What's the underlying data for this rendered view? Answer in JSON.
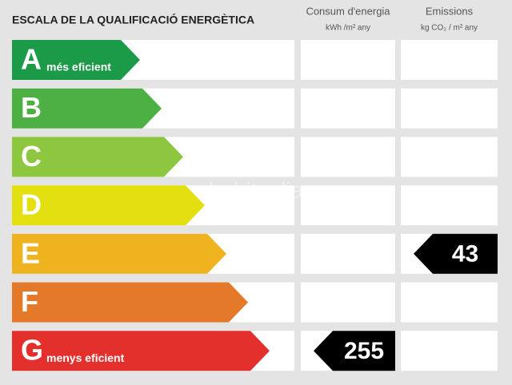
{
  "header": {
    "title": "ESCALA DE LA QUALIFICACIÓ ENERGÈTICA"
  },
  "columns": [
    {
      "title": "Consum d'energia",
      "unit": "kWh /m² any",
      "rating": "G",
      "value": 255
    },
    {
      "title": "Emissions",
      "unit": "kg CO₂ / m² any",
      "rating": "E",
      "value": 43
    }
  ],
  "ratings": [
    {
      "letter": "A",
      "label": "més eficient",
      "color": "#1b9a48"
    },
    {
      "letter": "B",
      "color": "#4db043"
    },
    {
      "letter": "C",
      "color": "#8dc63f"
    },
    {
      "letter": "D",
      "color": "#e3df10"
    },
    {
      "letter": "E",
      "color": "#efb320"
    },
    {
      "letter": "F",
      "color": "#e5792a"
    },
    {
      "letter": "G",
      "label": "menys eficient",
      "color": "#e3302c"
    }
  ],
  "watermark": "habitaclia"
}
